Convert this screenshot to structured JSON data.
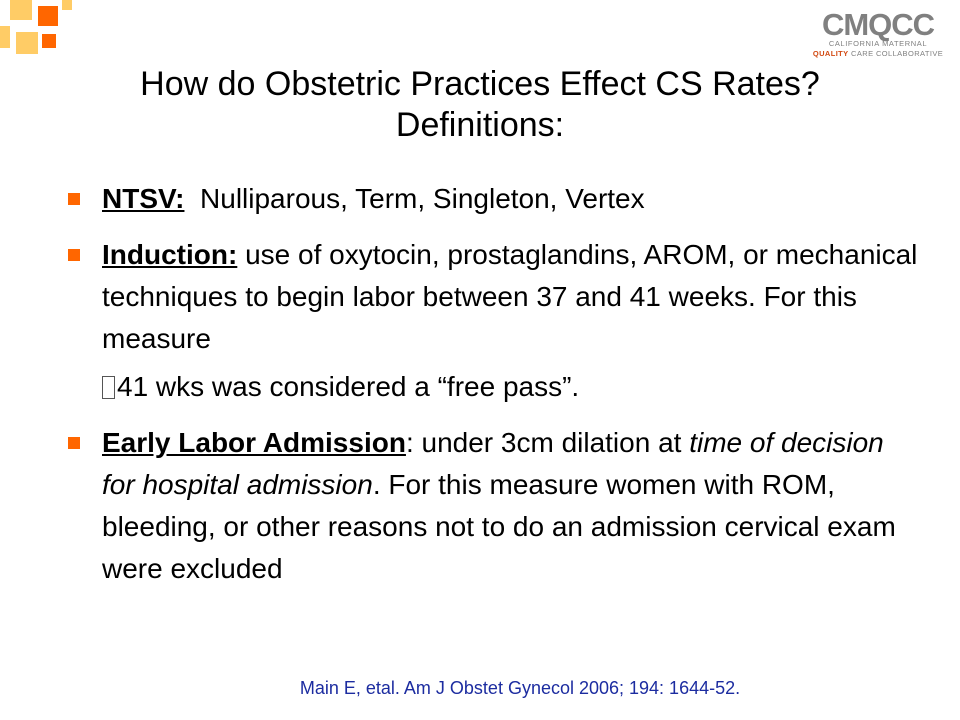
{
  "colors": {
    "accent": "#ff6600",
    "accent_light": "#ffcc66",
    "citation": "#1c2ca0",
    "logo_gray": "#808080",
    "logo_orange": "#d24a12"
  },
  "logo": {
    "main": "CMQCC",
    "line1": "CALIFORNIA MATERNAL",
    "line2_accent": "QUALITY",
    "line2_rest": " CARE COLLABORATIVE"
  },
  "title": {
    "line1": "How do Obstetric Practices Effect CS Rates?",
    "line2": "Definitions:"
  },
  "bullets": [
    {
      "term": "NTSV:",
      "text": "  Nulliparous, Term, Singleton, Vertex"
    },
    {
      "term": "Induction:",
      "text": " use of oxytocin, prostaglandins, AROM, or mechanical techniques to begin labor between 37 and 41 weeks.  For this measure",
      "text2": "41 wks was considered a “free pass”."
    },
    {
      "term": "Early Labor Admission",
      "text": ": under 3cm dilation at ",
      "italic": "time of decision for hospital admission",
      "text_after": ".  For this measure women with ROM, bleeding, or other reasons not to do an admission cervical exam were excluded"
    }
  ],
  "citation": "Main E, etal. Am J Obstet Gynecol 2006; 194: 1644-52."
}
